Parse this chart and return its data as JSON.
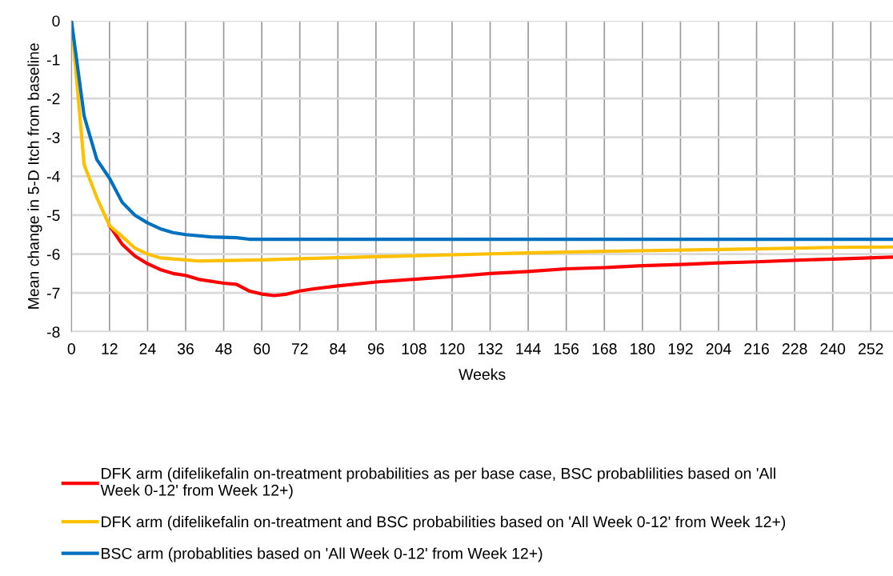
{
  "chart_data": {
    "type": "line",
    "xlabel": "Weeks",
    "ylabel": "Mean change in 5-D Itch from baseline",
    "xlim": [
      0,
      259
    ],
    "xticks": [
      0,
      12,
      24,
      36,
      48,
      60,
      72,
      84,
      96,
      108,
      120,
      132,
      144,
      156,
      168,
      180,
      192,
      204,
      216,
      228,
      240,
      252
    ],
    "ylim": [
      -8,
      0
    ],
    "yticks": [
      -8,
      -7,
      -6,
      -5,
      -4,
      -3,
      -2,
      -1,
      0
    ],
    "grid": true,
    "legend": "bottom",
    "marker": "none",
    "line_style": "solid",
    "series": [
      {
        "name": "DFK arm (difelikefalin on-treatment probabilities as per base case, BSC probablilities based on 'All\nWeek 0-12' from Week 12+)",
        "color": "#ff0000",
        "x": [
          12,
          16,
          20,
          24,
          28,
          32,
          36,
          40,
          48,
          52,
          56,
          60,
          64,
          68,
          72,
          76,
          84,
          96,
          108,
          120,
          132,
          144,
          156,
          168,
          180,
          192,
          204,
          216,
          228,
          240,
          259
        ],
        "values": [
          -5.27,
          -5.75,
          -6.05,
          -6.25,
          -6.4,
          -6.5,
          -6.55,
          -6.65,
          -6.75,
          -6.78,
          -6.95,
          -7.03,
          -7.07,
          -7.03,
          -6.95,
          -6.9,
          -6.82,
          -6.72,
          -6.65,
          -6.58,
          -6.5,
          -6.45,
          -6.38,
          -6.35,
          -6.3,
          -6.27,
          -6.23,
          -6.2,
          -6.16,
          -6.13,
          -6.08
        ]
      },
      {
        "name": "DFK arm (difelikefalin on-treatment and BSC probabilities based on 'All Week 0-12' from Week 12+)",
        "color": "#ffc000",
        "x": [
          0,
          4,
          8,
          12,
          16,
          20,
          24,
          28,
          36,
          40,
          60,
          72,
          96,
          120,
          144,
          168,
          192,
          216,
          240,
          259
        ],
        "values": [
          0,
          -3.7,
          -4.55,
          -5.27,
          -5.55,
          -5.85,
          -6.0,
          -6.1,
          -6.15,
          -6.18,
          -6.15,
          -6.12,
          -6.07,
          -6.02,
          -5.97,
          -5.93,
          -5.9,
          -5.87,
          -5.83,
          -5.82
        ]
      },
      {
        "name": "BSC arm (probablities based on 'All Week 0-12' from Week 12+)",
        "color": "#0070c0",
        "x": [
          0,
          4,
          8,
          12,
          16,
          20,
          24,
          28,
          32,
          36,
          44,
          52,
          56,
          259
        ],
        "values": [
          0,
          -2.45,
          -3.57,
          -4.05,
          -4.67,
          -5.0,
          -5.2,
          -5.35,
          -5.45,
          -5.5,
          -5.56,
          -5.58,
          -5.62,
          -5.62
        ]
      }
    ]
  }
}
